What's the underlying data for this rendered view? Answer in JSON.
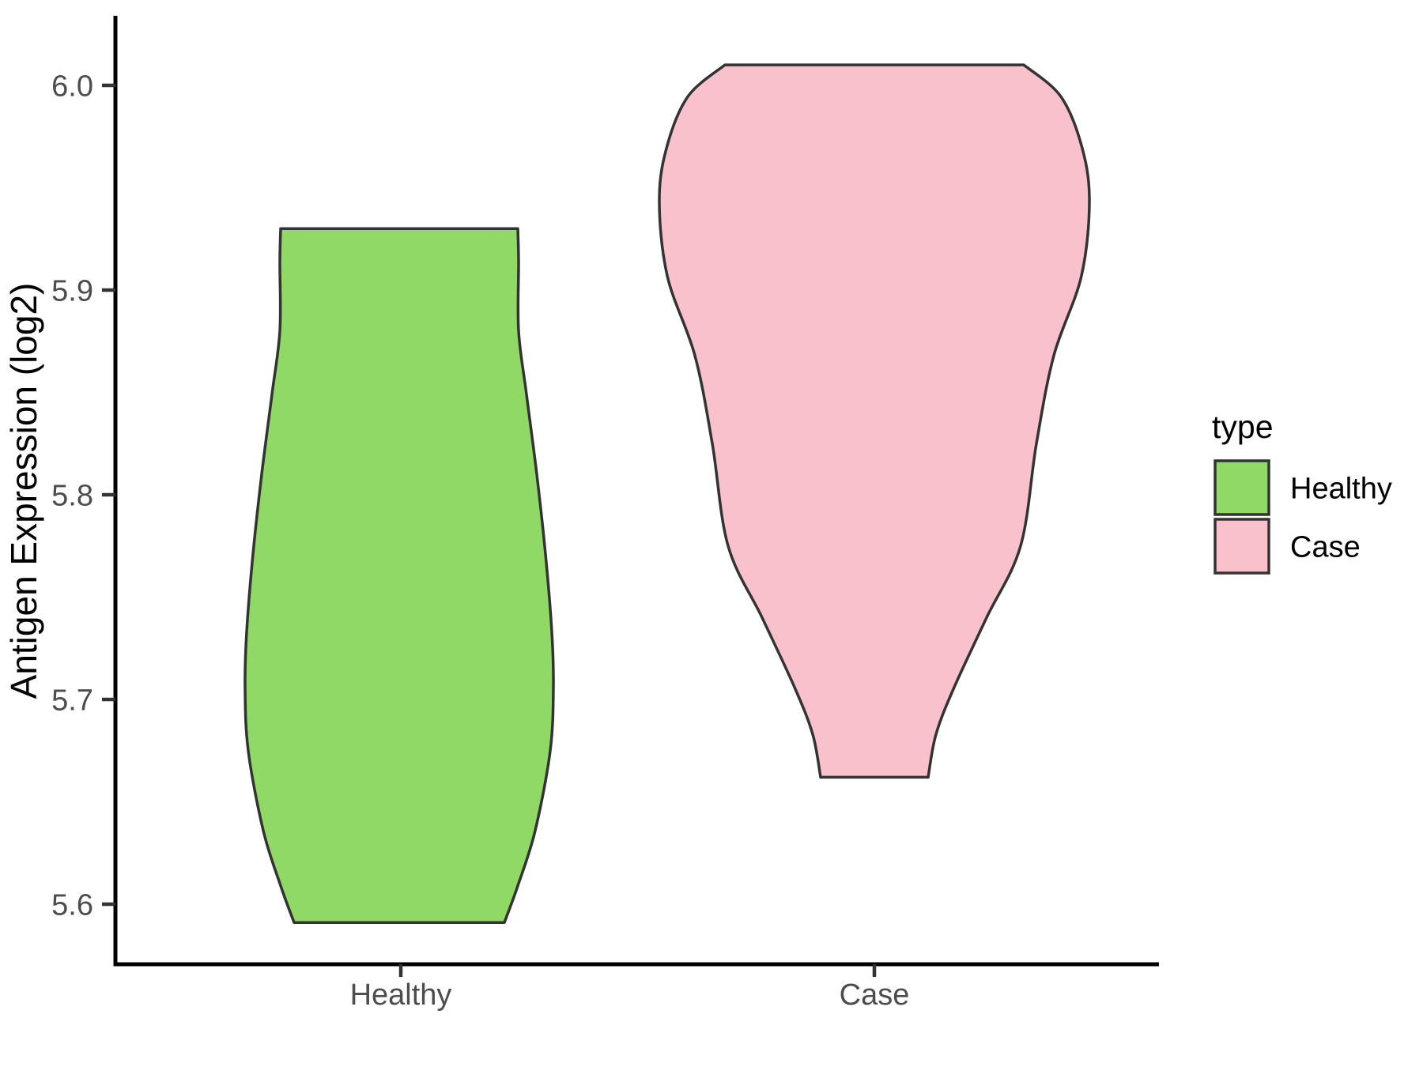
{
  "figure": {
    "y_axis": {
      "title": "Antigen Expression (log2)",
      "tick_labels": [
        "6.0",
        "5.9",
        "5.8",
        "5.7",
        "5.6"
      ]
    },
    "x_axis": {
      "categories": [
        "Healthy",
        "Case"
      ]
    },
    "legend": {
      "title": "type",
      "items": [
        {
          "label": "Healthy",
          "color": "#90D966"
        },
        {
          "label": "Case",
          "color": "#F8C1CC"
        }
      ]
    }
  },
  "chart_data": {
    "type": "violin",
    "title": "",
    "xlabel": "",
    "ylabel": "Antigen Expression (log2)",
    "categories": [
      "Healthy",
      "Case"
    ],
    "y_ticks": [
      6.0,
      5.9,
      5.8,
      5.7,
      5.6
    ],
    "ylim": [
      5.57,
      6.03
    ],
    "grid": false,
    "legend_title": "type",
    "legend_position": "right",
    "outline_color": "#333333",
    "series": [
      {
        "name": "Healthy",
        "fill": "#90D966",
        "outline": "#333333",
        "y_min": 5.591,
        "y_max": 5.93,
        "profile_note": "pairs of [expression_value, half_width_px]",
        "profile": [
          [
            5.93,
            150
          ],
          [
            5.914,
            151
          ],
          [
            5.88,
            151
          ],
          [
            5.849,
            161
          ],
          [
            5.81,
            174
          ],
          [
            5.771,
            185
          ],
          [
            5.733,
            193
          ],
          [
            5.706,
            195
          ],
          [
            5.675,
            191
          ],
          [
            5.636,
            172
          ],
          [
            5.609,
            150
          ],
          [
            5.591,
            133
          ]
        ]
      },
      {
        "name": "Case",
        "fill": "#F8C1CC",
        "outline": "#333333",
        "y_min": 5.662,
        "y_max": 6.01,
        "profile_note": "pairs of [expression_value, half_width_px]",
        "profile": [
          [
            6.01,
            189
          ],
          [
            5.995,
            235
          ],
          [
            5.972,
            261
          ],
          [
            5.945,
            272
          ],
          [
            5.907,
            262
          ],
          [
            5.868,
            227
          ],
          [
            5.825,
            205
          ],
          [
            5.775,
            185
          ],
          [
            5.74,
            142
          ],
          [
            5.706,
            101
          ],
          [
            5.683,
            78
          ],
          [
            5.662,
            68
          ]
        ]
      }
    ]
  }
}
